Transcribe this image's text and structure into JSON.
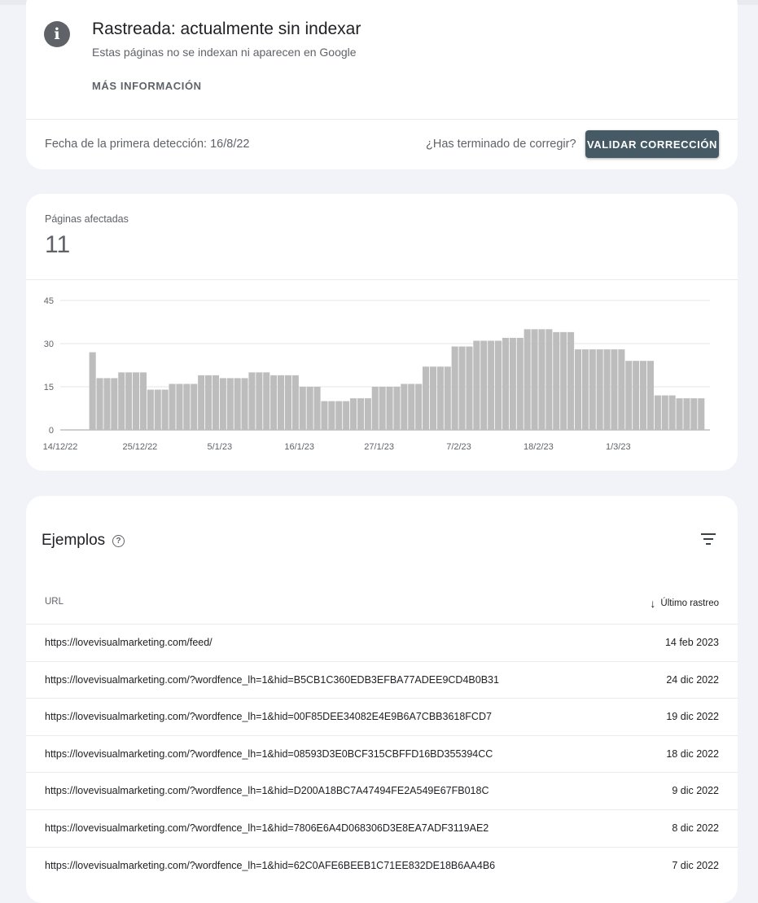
{
  "issue": {
    "title": "Rastreada: actualmente sin indexar",
    "subtitle": "Estas páginas no se indexan ni aparecen en Google",
    "more_info": "MÁS INFORMACIÓN",
    "first_detection": "Fecha de la primera detección: 16/8/22",
    "done_question": "¿Has terminado de corregir?",
    "validate_label": "VALIDAR CORRECCIÓN"
  },
  "affected": {
    "label": "Páginas afectadas",
    "count": "11"
  },
  "chart_data": {
    "type": "bar",
    "title": "",
    "xlabel": "",
    "ylabel": "",
    "ylim": [
      0,
      45
    ],
    "yticks": [
      "0",
      "15",
      "30",
      "45"
    ],
    "grid": true,
    "xtick_labels": [
      "14/12/22",
      "25/12/22",
      "5/1/23",
      "16/1/23",
      "27/1/23",
      "7/2/23",
      "18/2/23",
      "1/3/23"
    ],
    "xtick_day_index": [
      0,
      11,
      22,
      33,
      44,
      55,
      66,
      77
    ],
    "start_index": 4,
    "color": "#bdbdbd",
    "values": [
      27,
      18,
      18,
      18,
      20,
      20,
      20,
      20,
      14,
      14,
      14,
      16,
      16,
      16,
      16,
      19,
      19,
      19,
      18,
      18,
      18,
      18,
      20,
      20,
      20,
      19,
      19,
      19,
      19,
      15,
      15,
      15,
      10,
      10,
      10,
      10,
      11,
      11,
      11,
      15,
      15,
      15,
      15,
      16,
      16,
      16,
      22,
      22,
      22,
      22,
      29,
      29,
      29,
      31,
      31,
      31,
      31,
      32,
      32,
      32,
      35,
      35,
      35,
      35,
      34,
      34,
      34,
      28,
      28,
      28,
      28,
      28,
      28,
      28,
      24,
      24,
      24,
      24,
      12,
      12,
      12,
      11,
      11,
      11,
      11
    ]
  },
  "examples": {
    "title": "Ejemplos",
    "col_url": "URL",
    "col_last": "Último rastreo",
    "rows": [
      {
        "url": "https://lovevisualmarketing.com/feed/",
        "date": "14 feb 2023"
      },
      {
        "url": "https://lovevisualmarketing.com/?wordfence_lh=1&hid=B5CB1C360EDB3EFBA77ADEE9CD4B0B31",
        "date": "24 dic 2022"
      },
      {
        "url": "https://lovevisualmarketing.com/?wordfence_lh=1&hid=00F85DEE34082E4E9B6A7CBB3618FCD7",
        "date": "19 dic 2022"
      },
      {
        "url": "https://lovevisualmarketing.com/?wordfence_lh=1&hid=08593D3E0BCF315CBFFD16BD355394CC",
        "date": "18 dic 2022"
      },
      {
        "url": "https://lovevisualmarketing.com/?wordfence_lh=1&hid=D200A18BC7A47494FE2A549E67FB018C",
        "date": "9 dic 2022"
      },
      {
        "url": "https://lovevisualmarketing.com/?wordfence_lh=1&hid=7806E6A4D068306D3E8EA7ADF3119AE2",
        "date": "8 dic 2022"
      },
      {
        "url": "https://lovevisualmarketing.com/?wordfence_lh=1&hid=62C0AFE6BEEB1C71EE832DE18B6AA4B6",
        "date": "7 dic 2022"
      }
    ]
  }
}
